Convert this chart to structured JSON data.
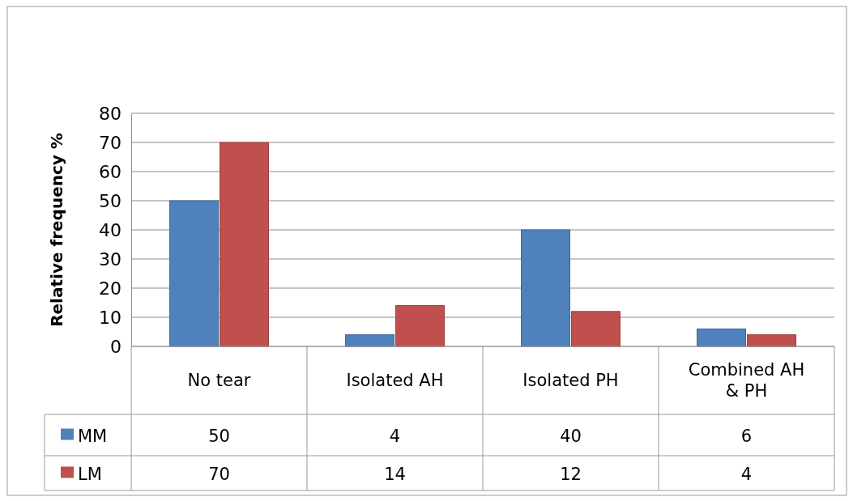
{
  "chart_data": {
    "type": "bar",
    "ylabel": "Relative frequency %",
    "categories": [
      "No tear",
      "Isolated AH",
      "Isolated PH",
      "Combined AH & PH"
    ],
    "series": [
      {
        "name": "MM",
        "color": "#4f81bd",
        "values": [
          50,
          4,
          40,
          6
        ]
      },
      {
        "name": "LM",
        "color": "#c0504d",
        "values": [
          70,
          14,
          12,
          4
        ]
      }
    ],
    "ylim": [
      0,
      80
    ],
    "yticks": [
      0,
      10,
      20,
      30,
      40,
      50,
      60,
      70,
      80
    ],
    "grid": "y",
    "data_labels": true,
    "legend": "bottom left"
  }
}
